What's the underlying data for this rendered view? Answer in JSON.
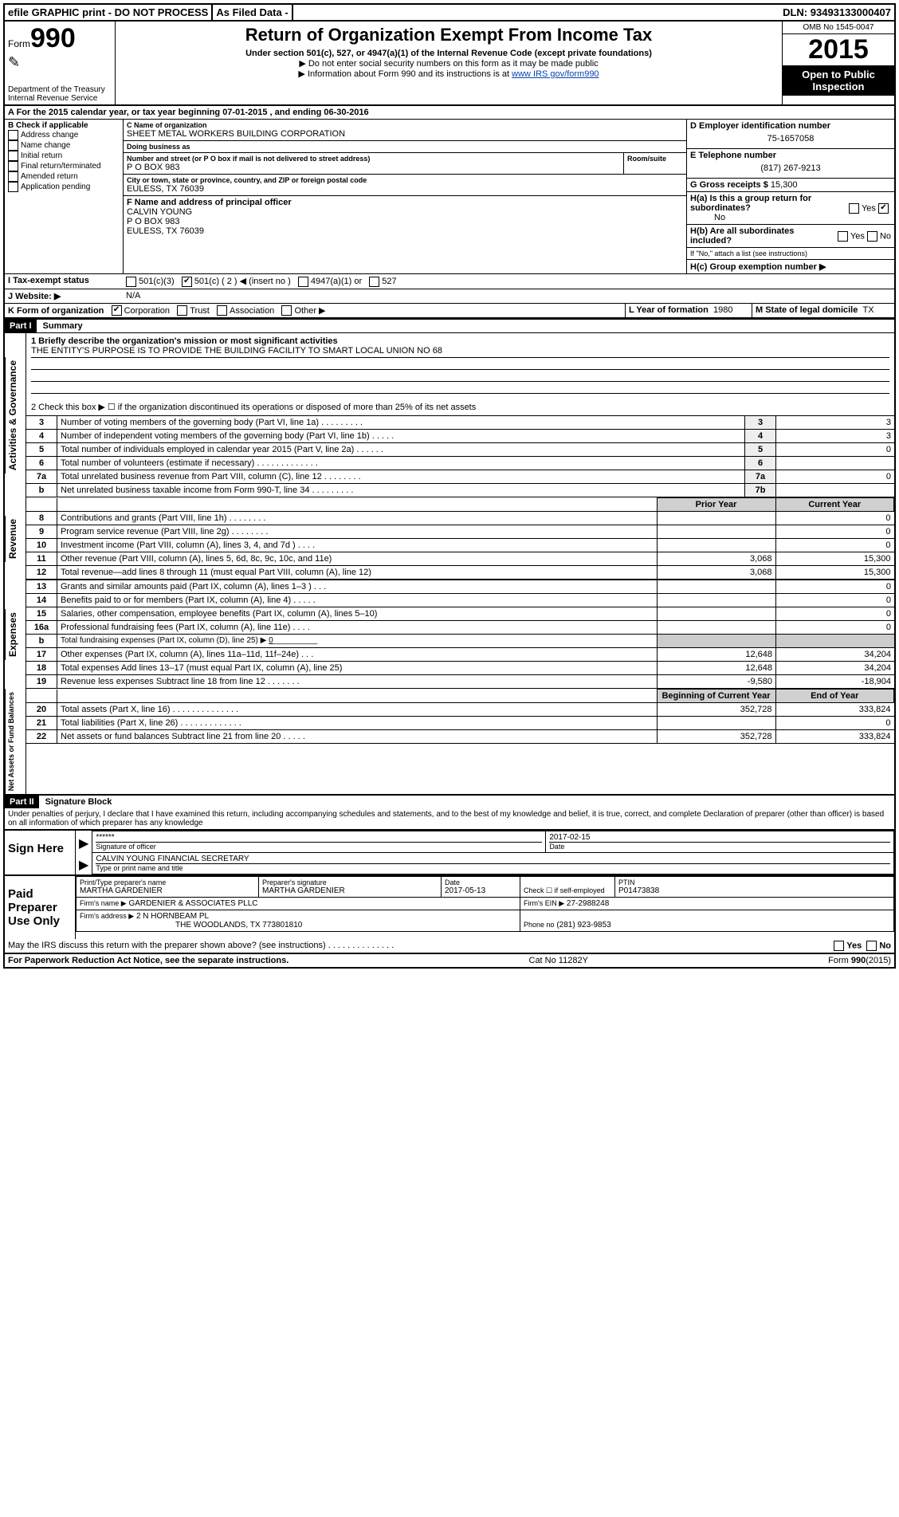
{
  "topbar": {
    "efile": "efile GRAPHIC print - DO NOT PROCESS",
    "asfiled": "As Filed Data -",
    "dln_label": "DLN:",
    "dln": "93493133000407"
  },
  "header": {
    "form_prefix": "Form",
    "form_number": "990",
    "dept": "Department of the Treasury",
    "irs": "Internal Revenue Service",
    "title": "Return of Organization Exempt From Income Tax",
    "sub": "Under section 501(c), 527, or 4947(a)(1) of the Internal Revenue Code (except private foundations)",
    "arrow1": "▶ Do not enter social security numbers on this form as it may be made public",
    "arrow2": "▶ Information about Form 990 and its instructions is at ",
    "irs_link": "www IRS gov/form990",
    "omb": "OMB No 1545-0047",
    "year": "2015",
    "open": "Open to Public Inspection"
  },
  "sec_a": {
    "text": "A  For the 2015 calendar year, or tax year beginning 07-01-2015   , and ending 06-30-2016"
  },
  "col_b": {
    "title": "B Check if applicable",
    "items": [
      "Address change",
      "Name change",
      "Initial return",
      "Final return/terminated",
      "Amended return",
      "Application pending"
    ]
  },
  "col_c": {
    "name_label": "C Name of organization",
    "name": "SHEET METAL WORKERS BUILDING CORPORATION",
    "dba_label": "Doing business as",
    "dba": "",
    "street_label": "Number and street (or P O box if mail is not delivered to street address)",
    "room_label": "Room/suite",
    "street": "P O BOX 983",
    "city_label": "City or town, state or province, country, and ZIP or foreign postal code",
    "city": "EULESS, TX 76039",
    "f_label": "F Name and address of principal officer",
    "f_name": "CALVIN YOUNG",
    "f_street": "P O BOX 983",
    "f_city": "EULESS, TX 76039"
  },
  "col_d": {
    "ein_label": "D Employer identification number",
    "ein": "75-1657058",
    "tel_label": "E Telephone number",
    "tel": "(817) 267-9213",
    "gross_label": "G Gross receipts $",
    "gross": "15,300",
    "ha_label": "H(a)  Is this a group return for subordinates?",
    "ha_val": "No",
    "hb_label": "H(b)  Are all subordinates included?",
    "hb_note": "If \"No,\" attach a list (see instructions)",
    "hc_label": "H(c)  Group exemption number ▶"
  },
  "row_i": {
    "label": "I  Tax-exempt status",
    "opts": [
      "501(c)(3)",
      "501(c) ( 2 ) ◀ (insert no )",
      "4947(a)(1) or",
      "527"
    ],
    "checked_index": 1
  },
  "row_j": {
    "label": "J  Website: ▶",
    "val": "N/A"
  },
  "row_k": {
    "label": "K Form of organization",
    "opts": [
      "Corporation",
      "Trust",
      "Association",
      "Other ▶"
    ],
    "checked_index": 0,
    "l_label": "L Year of formation",
    "l_val": "1980",
    "m_label": "M State of legal domicile",
    "m_val": "TX"
  },
  "part1": {
    "tab": "Part I",
    "title": "Summary",
    "q1_label": "1 Briefly describe the organization's mission or most significant activities",
    "q1_text": "THE ENTITY'S PURPOSE IS TO PROVIDE THE BUILDING FACILITY TO SMART LOCAL UNION NO 68",
    "q2": "2  Check this box ▶ ☐ if the organization discontinued its operations or disposed of more than 25% of its net assets",
    "simple_rows": [
      {
        "n": "3",
        "t": "Number of voting members of the governing body (Part VI, line 1a)   .   .   .   .   .   .   .   .   .",
        "k": "3",
        "v": "3"
      },
      {
        "n": "4",
        "t": "Number of independent voting members of the governing body (Part VI, line 1b)   .   .   .   .   .",
        "k": "4",
        "v": "3"
      },
      {
        "n": "5",
        "t": "Total number of individuals employed in calendar year 2015 (Part V, line 2a)   .   .   .   .   .   .",
        "k": "5",
        "v": "0"
      },
      {
        "n": "6",
        "t": "Total number of volunteers (estimate if necessary)   .   .   .   .   .   .   .   .   .   .   .   .   .",
        "k": "6",
        "v": ""
      },
      {
        "n": "7a",
        "t": "Total unrelated business revenue from Part VIII, column (C), line 12   .   .   .   .   .   .   .   .",
        "k": "7a",
        "v": "0"
      },
      {
        "n": "b",
        "t": "Net unrelated business taxable income from Form 990-T, line 34   .   .   .   .   .   .   .   .   .",
        "k": "7b",
        "v": ""
      }
    ],
    "prior_hdr": "Prior Year",
    "curr_hdr": "Current Year",
    "revenue_rows": [
      {
        "n": "8",
        "t": "Contributions and grants (Part VIII, line 1h)   .   .   .   .   .   .   .   .",
        "p": "",
        "c": "0"
      },
      {
        "n": "9",
        "t": "Program service revenue (Part VIII, line 2g)   .   .   .   .   .   .   .   .",
        "p": "",
        "c": "0"
      },
      {
        "n": "10",
        "t": "Investment income (Part VIII, column (A), lines 3, 4, and 7d )   .   .   .   .",
        "p": "",
        "c": "0"
      },
      {
        "n": "11",
        "t": "Other revenue (Part VIII, column (A), lines 5, 6d, 8c, 9c, 10c, and 11e)",
        "p": "3,068",
        "c": "15,300"
      },
      {
        "n": "12",
        "t": "Total revenue—add lines 8 through 11 (must equal Part VIII, column (A), line 12)",
        "p": "3,068",
        "c": "15,300"
      }
    ],
    "expense_rows": [
      {
        "n": "13",
        "t": "Grants and similar amounts paid (Part IX, column (A), lines 1–3 )   .   .   .",
        "p": "",
        "c": "0"
      },
      {
        "n": "14",
        "t": "Benefits paid to or for members (Part IX, column (A), line 4)   .   .   .   .   .",
        "p": "",
        "c": "0"
      },
      {
        "n": "15",
        "t": "Salaries, other compensation, employee benefits (Part IX, column (A), lines 5–10)",
        "p": "",
        "c": "0"
      },
      {
        "n": "16a",
        "t": "Professional fundraising fees (Part IX, column (A), line 11e)   .   .   .   .",
        "p": "",
        "c": "0"
      },
      {
        "n": "b",
        "t": "Total fundraising expenses (Part IX, column (D), line 25) ▶",
        "p": "__blank__",
        "c": "__blank__",
        "inline_val": "0"
      },
      {
        "n": "17",
        "t": "Other expenses (Part IX, column (A), lines 11a–11d, 11f–24e)   .   .   .",
        "p": "12,648",
        "c": "34,204"
      },
      {
        "n": "18",
        "t": "Total expenses Add lines 13–17 (must equal Part IX, column (A), line 25)",
        "p": "12,648",
        "c": "34,204"
      },
      {
        "n": "19",
        "t": "Revenue less expenses Subtract line 18 from line 12   .   .   .   .   .   .   .",
        "p": "-9,580",
        "c": "-18,904"
      }
    ],
    "net_hdr1": "Beginning of Current Year",
    "net_hdr2": "End of Year",
    "net_rows": [
      {
        "n": "20",
        "t": "Total assets (Part X, line 16)   .   .   .   .   .   .   .   .   .   .   .   .   .   .",
        "p": "352,728",
        "c": "333,824"
      },
      {
        "n": "21",
        "t": "Total liabilities (Part X, line 26)   .   .   .   .   .   .   .   .   .   .   .   .   .",
        "p": "",
        "c": "0"
      },
      {
        "n": "22",
        "t": "Net assets or fund balances Subtract line 21 from line 20   .   .   .   .   .",
        "p": "352,728",
        "c": "333,824"
      }
    ],
    "vtabs": [
      "Activities & Governance",
      "Revenue",
      "Expenses",
      "Net Assets or Fund Balances"
    ]
  },
  "part2": {
    "tab": "Part II",
    "title": "Signature Block",
    "perjury": "Under penalties of perjury, I declare that I have examined this return, including accompanying schedules and statements, and to the best of my knowledge and belief, it is true, correct, and complete Declaration of preparer (other than officer) is based on all information of which preparer has any knowledge",
    "sign_here": "Sign Here",
    "stars": "******",
    "sig_officer_label": "Signature of officer",
    "date_label": "Date",
    "sig_date": "2017-02-15",
    "officer_name": "CALVIN YOUNG FINANCIAL SECRETARY",
    "officer_type_label": "Type or print name and title",
    "paid": "Paid Preparer Use Only",
    "prep_name_label": "Print/Type preparer's name",
    "prep_name": "MARTHA GARDENIER",
    "prep_sig_label": "Preparer's signature",
    "prep_sig": "MARTHA GARDENIER",
    "prep_date_label": "Date",
    "prep_date": "2017-05-13",
    "self_emp": "Check ☐ if self-employed",
    "ptin_label": "PTIN",
    "ptin": "P01473838",
    "firm_name_label": "Firm's name    ▶",
    "firm_name": "GARDENIER & ASSOCIATES PLLC",
    "firm_ein_label": "Firm's EIN ▶",
    "firm_ein": "27-2988248",
    "firm_addr_label": "Firm's address ▶",
    "firm_addr": "2 N HORNBEAM PL",
    "firm_addr2": "THE WOODLANDS, TX  773801810",
    "phone_label": "Phone no",
    "phone": "(281) 923-9853",
    "discuss": "May the IRS discuss this return with the preparer shown above? (see instructions)   .   .   .   .   .   .   .   .   .   .   .   .   .   .",
    "yes": "Yes",
    "no": "No"
  },
  "footer": {
    "pra": "For Paperwork Reduction Act Notice, see the separate instructions.",
    "cat": "Cat No 11282Y",
    "form": "Form",
    "formno": "990",
    "formyr": "(2015)"
  }
}
